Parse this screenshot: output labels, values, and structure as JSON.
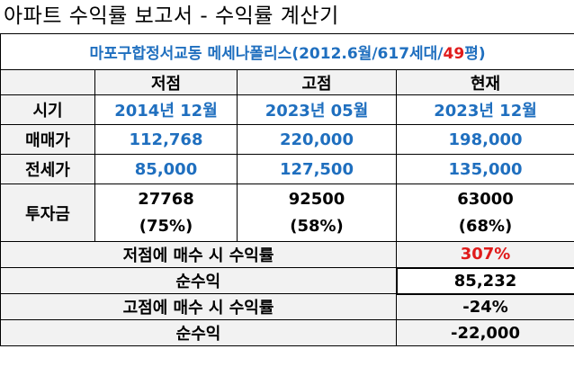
{
  "title": "아파트 수익률 보고서 - 수익률 계산기",
  "subtitle": {
    "prefix": "마포구합정서교동 메세나폴리스(2012.6월/617세대/",
    "highlight": "49",
    "suffix": "평)"
  },
  "columns": [
    "",
    "저점",
    "고점",
    "현재"
  ],
  "rows": [
    {
      "label": "시기",
      "values": [
        "2014년 12월",
        "2023년 05월",
        "2023년 12월"
      ]
    },
    {
      "label": "매매가",
      "values": [
        "112,768",
        "220,000",
        "198,000"
      ]
    },
    {
      "label": "전세가",
      "values": [
        "85,000",
        "127,500",
        "135,000"
      ]
    }
  ],
  "investment": {
    "label": "투자금",
    "values": [
      {
        "amount": "27768",
        "pct": "(75%)"
      },
      {
        "amount": "92500",
        "pct": "(58%)"
      },
      {
        "amount": "63000",
        "pct": "(68%)"
      }
    ]
  },
  "summary": [
    {
      "label": "저점에 매수 시 수익률",
      "value": "307%"
    },
    {
      "label": "순수익",
      "value": "85,232"
    },
    {
      "label": "고점에 매수 시 수익률",
      "value": "-24%"
    },
    {
      "label": "순수익",
      "value": "-22,000"
    }
  ],
  "colors": {
    "accent_blue": "#1f6fbf",
    "highlight_red": "#e01b1b",
    "cell_gray": "#f2f2f2"
  }
}
